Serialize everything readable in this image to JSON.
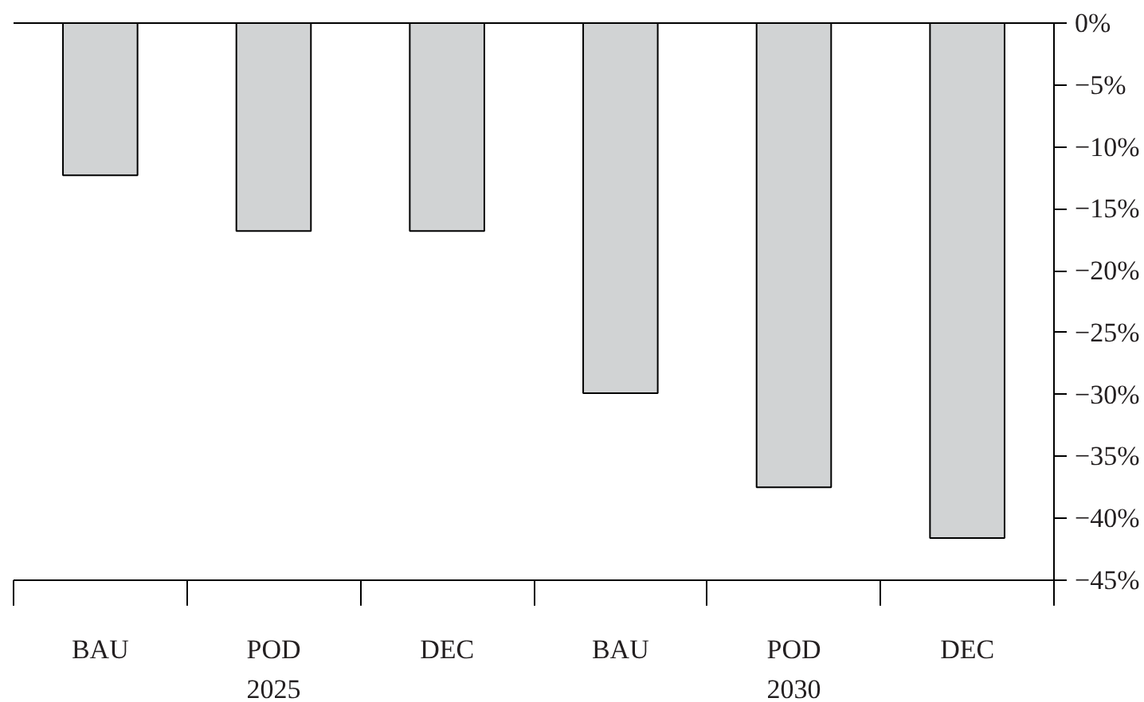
{
  "chart_data": {
    "type": "bar",
    "categories": [
      "BAU",
      "POD",
      "DEC",
      "BAU",
      "POD",
      "DEC"
    ],
    "values": [
      -12.3,
      -16.8,
      -16.8,
      -29.9,
      -37.5,
      -41.6
    ],
    "color": "#d1d3d4",
    "ylim": [
      -45,
      0
    ],
    "yticks": [
      {
        "value": 0,
        "label": "0%"
      },
      {
        "value": -5,
        "label": "−5%"
      },
      {
        "value": -10,
        "label": "−10%"
      },
      {
        "value": -15,
        "label": "−15%"
      },
      {
        "value": -20,
        "label": "−20%"
      },
      {
        "value": -25,
        "label": "−25%"
      },
      {
        "value": -30,
        "label": "−30%"
      },
      {
        "value": -35,
        "label": "−35%"
      },
      {
        "value": -40,
        "label": "−40%"
      },
      {
        "value": -45,
        "label": "−45%"
      }
    ],
    "annotations": [
      "2025",
      "2030"
    ],
    "grid": false
  }
}
